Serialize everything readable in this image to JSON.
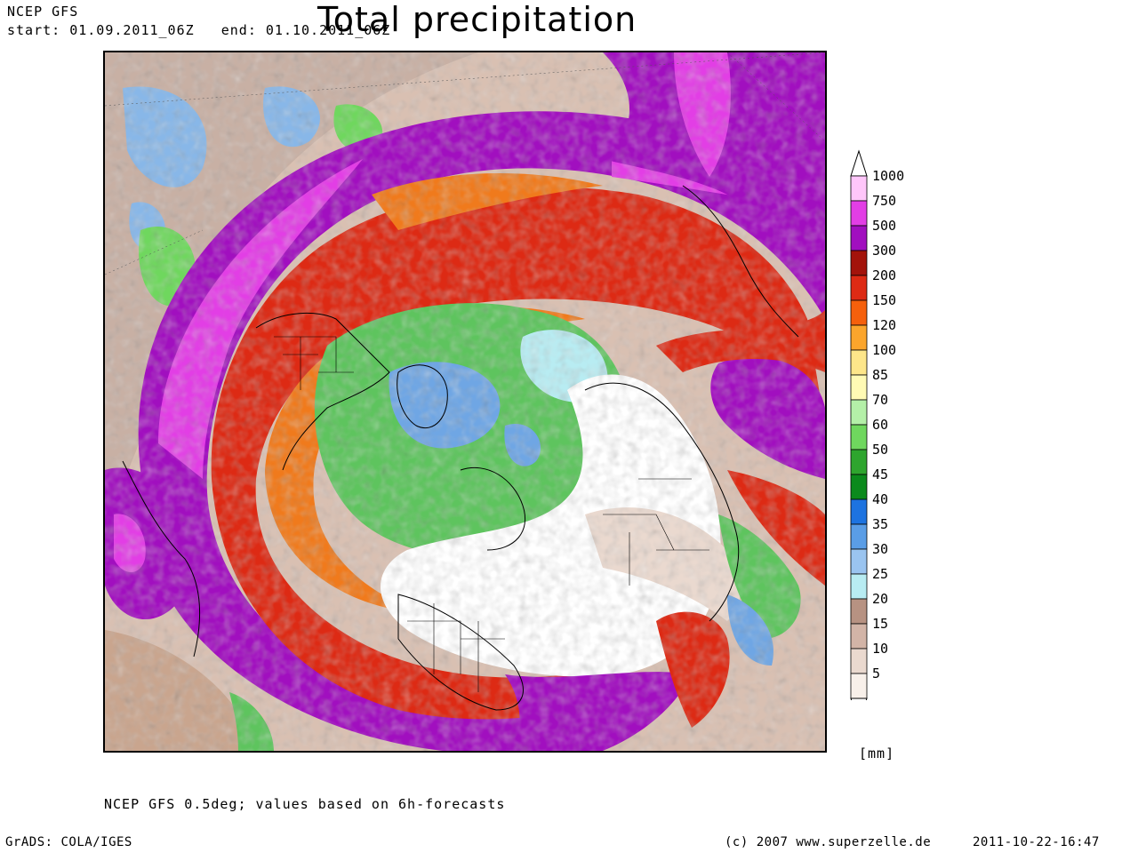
{
  "header": {
    "model": "NCEP GFS",
    "start_label": "start: 01.09.2011_06Z",
    "end_label": "end: 01.10.2011_06Z",
    "title": "Total precipitation"
  },
  "map": {
    "projection": "polar stereographic",
    "fill_colors": {
      "background": "#ffffff",
      "light": "#ead9cf",
      "tan": "#c9a58e",
      "blue": "#6fa6e4",
      "green": "#5ec45e",
      "yellow": "#fde68a",
      "orange": "#f07a1c",
      "red": "#dd2a14",
      "darkred": "#a3130b",
      "purple": "#a10fbf",
      "magenta": "#e23ee5"
    }
  },
  "legend": {
    "unit": "[mm]",
    "entries": [
      {
        "label": "1000",
        "color": "#ffc6fa"
      },
      {
        "label": "750",
        "color": "#e23ee5"
      },
      {
        "label": "500",
        "color": "#a10fbf"
      },
      {
        "label": "300",
        "color": "#a3130b"
      },
      {
        "label": "200",
        "color": "#dd2a14"
      },
      {
        "label": "150",
        "color": "#f5600c"
      },
      {
        "label": "120",
        "color": "#fba52c"
      },
      {
        "label": "100",
        "color": "#fde68a"
      },
      {
        "label": "85",
        "color": "#fffab4"
      },
      {
        "label": "70",
        "color": "#b4f0a8"
      },
      {
        "label": "60",
        "color": "#6fd75e"
      },
      {
        "label": "50",
        "color": "#2ea52e"
      },
      {
        "label": "45",
        "color": "#0b8a1c"
      },
      {
        "label": "40",
        "color": "#1d73e0"
      },
      {
        "label": "35",
        "color": "#5a9de6"
      },
      {
        "label": "30",
        "color": "#9ac4f0"
      },
      {
        "label": "25",
        "color": "#b8ecf2"
      },
      {
        "label": "20",
        "color": "#b79282"
      },
      {
        "label": "15",
        "color": "#d2b4a7"
      },
      {
        "label": "10",
        "color": "#ead9cf"
      },
      {
        "label": "5",
        "color": "#f8f0ea"
      }
    ]
  },
  "footer": {
    "note": "NCEP GFS 0.5deg; values based on 6h-forecasts",
    "grads": "GrADS: COLA/IGES",
    "copyright": "(c) 2007 www.superzelle.de",
    "timestamp": "2011-10-22-16:47"
  }
}
